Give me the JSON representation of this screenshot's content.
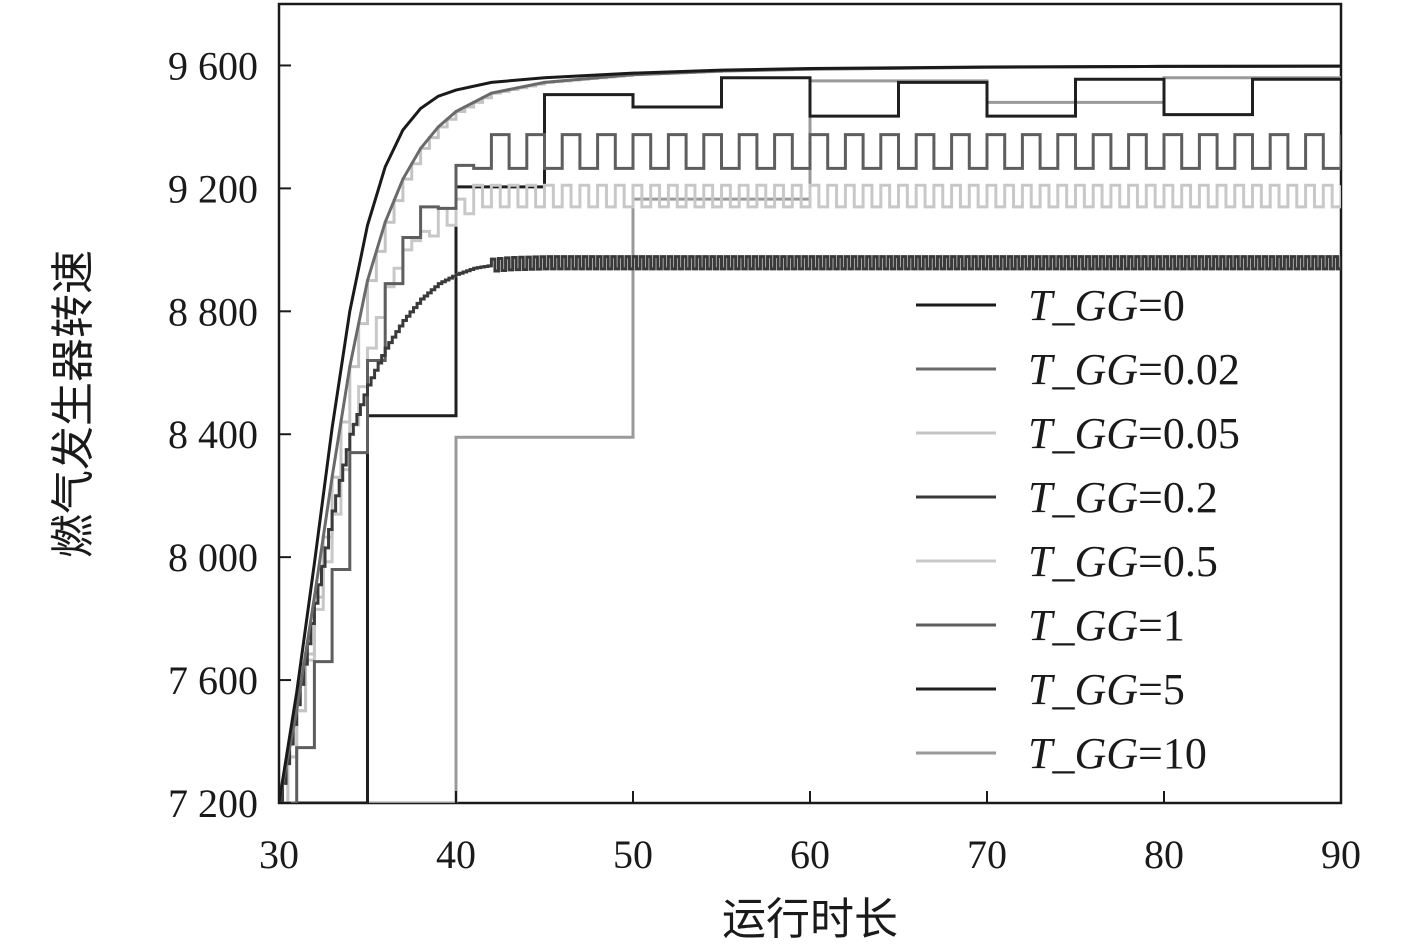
{
  "chart_data": {
    "type": "line",
    "title": "",
    "xlabel": "运行时长",
    "ylabel": "燃气发生器转速",
    "xlim": [
      30,
      90
    ],
    "ylim": [
      7200,
      9800
    ],
    "xticks": [
      30,
      40,
      50,
      60,
      70,
      80,
      90
    ],
    "xtick_labels": [
      "30",
      "40",
      "50",
      "60",
      "70",
      "80",
      "90"
    ],
    "yticks": [
      7200,
      7600,
      8000,
      8400,
      8800,
      9200,
      9600
    ],
    "ytick_labels": [
      "7 200",
      "7 600",
      "8 000",
      "8 400",
      "8 800",
      "9 200",
      "9 600"
    ],
    "grid": false,
    "legend_position": "right",
    "series": [
      {
        "name": "T_GG=0",
        "legend_text": "=0",
        "color": "#1a1a1a",
        "x": [
          30,
          31,
          32,
          33,
          34,
          35,
          36,
          37,
          38,
          39,
          40,
          42,
          45,
          50,
          55,
          60,
          70,
          80,
          90
        ],
        "y": [
          7200,
          7560,
          7980,
          8420,
          8800,
          9080,
          9270,
          9390,
          9460,
          9500,
          9520,
          9545,
          9560,
          9575,
          9585,
          9590,
          9595,
          9597,
          9598
        ]
      },
      {
        "name": "T_GG=0.02",
        "legend_text": "=0.02",
        "color": "#6a6a6a",
        "x": [
          30,
          31,
          32,
          33,
          34,
          35,
          36,
          37,
          38,
          39,
          40,
          42,
          45,
          50,
          55,
          60,
          70,
          80,
          90
        ],
        "y": [
          7200,
          7500,
          7870,
          8260,
          8620,
          8900,
          9090,
          9230,
          9330,
          9400,
          9450,
          9510,
          9545,
          9570,
          9582,
          9588,
          9594,
          9597,
          9598
        ]
      },
      {
        "name": "T_GG=0.05",
        "legend_text": "=0.05",
        "color": "#c4c4c4",
        "step": 0.5,
        "amplitude": 0,
        "x": [
          30,
          31,
          32,
          33,
          34,
          35,
          36,
          37,
          38,
          39,
          40,
          42,
          45,
          50,
          55,
          60,
          70,
          80,
          90
        ],
        "y": [
          7200,
          7500,
          7870,
          8260,
          8620,
          8900,
          9090,
          9230,
          9330,
          9400,
          9450,
          9510,
          9545,
          9570,
          9582,
          9588,
          9594,
          9597,
          9598
        ]
      },
      {
        "name": "T_GG=0.2",
        "legend_text": "=0.2",
        "color": "#3a3a3a",
        "step": 0.2,
        "amplitude": 40,
        "x": [
          30,
          31,
          32,
          33,
          34,
          35,
          36,
          37,
          38,
          39,
          40,
          41,
          42,
          43,
          45,
          90
        ],
        "y": [
          7200,
          7520,
          7850,
          8150,
          8400,
          8560,
          8680,
          8770,
          8840,
          8890,
          8920,
          8940,
          8950,
          8955,
          8958,
          8958
        ]
      },
      {
        "name": "T_GG=0.5",
        "legend_text": "=0.5",
        "color": "#c8c8c8",
        "step": 0.5,
        "amplitude": 70,
        "x": [
          30,
          31,
          32,
          33,
          34,
          35,
          36,
          37,
          38,
          39,
          40,
          41,
          90
        ],
        "y": [
          7200,
          7500,
          7830,
          8140,
          8430,
          8680,
          8880,
          9000,
          9060,
          9100,
          9130,
          9175,
          9175
        ]
      },
      {
        "name": "T_GG=1",
        "legend_text": "=1",
        "color": "#5e5e5e",
        "step": 1,
        "amplitude": 110,
        "x": [
          30,
          31,
          32,
          33,
          34,
          35,
          36,
          37,
          38,
          39,
          40,
          41,
          90
        ],
        "y": [
          7200,
          7380,
          7660,
          7960,
          8340,
          8640,
          8890,
          9040,
          9140,
          9190,
          9220,
          9320,
          9320
        ]
      },
      {
        "name": "T_GG=5",
        "legend_text": "=5",
        "color": "#1f1f1f",
        "x": [
          30,
          35,
          35,
          40,
          40,
          45,
          45,
          50,
          50,
          55,
          55,
          60,
          60,
          65,
          65,
          70,
          70,
          75,
          75,
          80,
          80,
          85,
          85,
          90
        ],
        "y": [
          7200,
          7200,
          8460,
          8460,
          9205,
          9205,
          9505,
          9505,
          9465,
          9465,
          9560,
          9560,
          9435,
          9435,
          9545,
          9545,
          9435,
          9435,
          9555,
          9555,
          9440,
          9440,
          9555,
          9555
        ]
      },
      {
        "name": "T_GG=10",
        "legend_text": "=10",
        "color": "#9a9a9a",
        "x": [
          30,
          40,
          40,
          50,
          50,
          60,
          60,
          70,
          70,
          80,
          80,
          90
        ],
        "y": [
          7200,
          7200,
          8390,
          8390,
          9165,
          9165,
          9550,
          9550,
          9480,
          9480,
          9560,
          9560
        ]
      }
    ]
  }
}
